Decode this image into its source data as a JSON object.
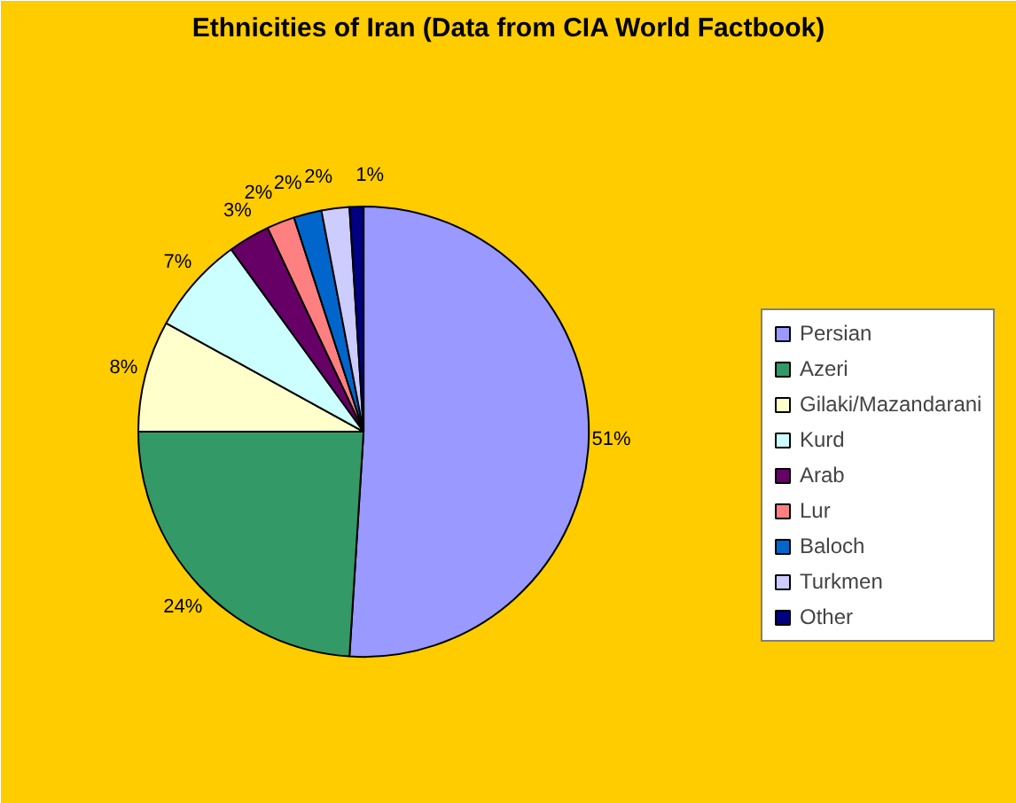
{
  "chart_data": {
    "type": "pie",
    "title": "Ethnicities of Iran (Data from CIA World Factbook)",
    "categories": [
      "Persian",
      "Azeri",
      "Gilaki/Mazandarani",
      "Kurd",
      "Arab",
      "Lur",
      "Baloch",
      "Turkmen",
      "Other"
    ],
    "values": [
      51,
      24,
      8,
      7,
      3,
      2,
      2,
      2,
      1
    ],
    "value_labels": [
      "51%",
      "24%",
      "8%",
      "7%",
      "3%",
      "2%",
      "2%",
      "2%",
      "1%"
    ],
    "colors": [
      "#9999ff",
      "#339966",
      "#ffffcc",
      "#ccffff",
      "#660066",
      "#ff8080",
      "#0066cc",
      "#ccccff",
      "#000080"
    ],
    "legend": "right"
  }
}
